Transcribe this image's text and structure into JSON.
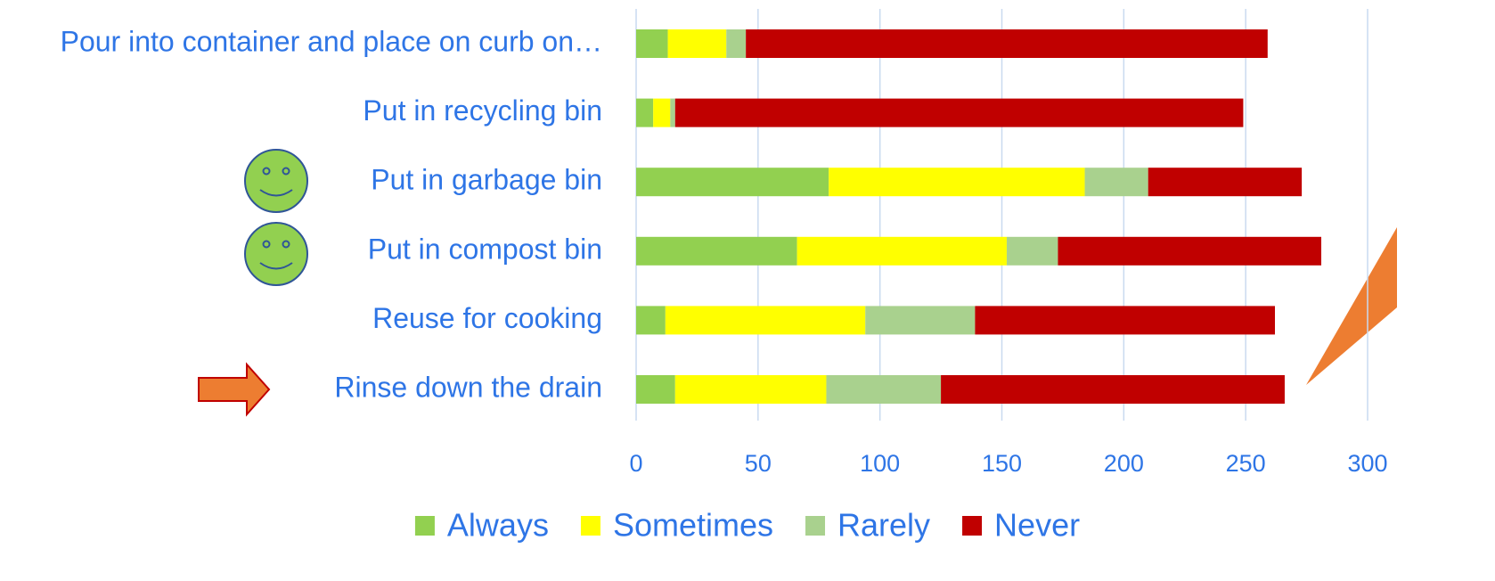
{
  "chart_data": {
    "type": "stacked_bar_horizontal",
    "categories": [
      "Pour into container and place on curb on…",
      "Put in recycling bin",
      "Put in garbage bin",
      "Put in compost bin",
      "Reuse for cooking",
      "Rinse down the drain"
    ],
    "series": [
      {
        "name": "Always",
        "color": "#92d050",
        "values": [
          13,
          7,
          79,
          66,
          12,
          16
        ]
      },
      {
        "name": "Sometimes",
        "color": "#ffff00",
        "values": [
          24,
          7,
          105,
          86,
          82,
          62
        ]
      },
      {
        "name": "Rarely",
        "color": "#a9d18e",
        "values": [
          8,
          2,
          26,
          21,
          45,
          47
        ]
      },
      {
        "name": "Never",
        "color": "#c00000",
        "values": [
          214,
          233,
          63,
          108,
          123,
          141
        ]
      }
    ],
    "xlim": [
      0,
      300
    ],
    "xticks": [
      0,
      50,
      100,
      150,
      200,
      250,
      300
    ],
    "grid": true,
    "legend": "bottom"
  }
}
